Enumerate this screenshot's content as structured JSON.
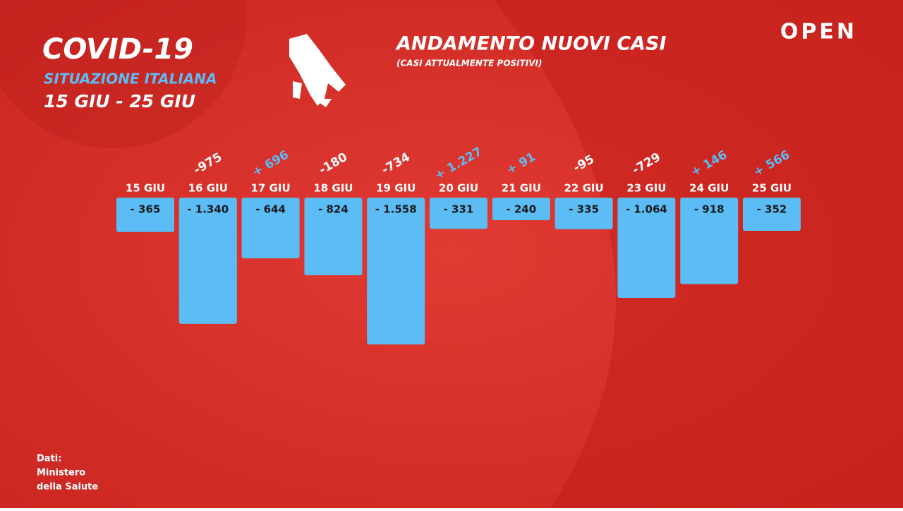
{
  "header": {
    "title": "COVID-19",
    "subtitle": "SITUAZIONE ITALIANA",
    "period": "15 GIU - 25 GIU"
  },
  "brand": "OPEN",
  "source": [
    "Dati:",
    "Ministero",
    "della Salute"
  ],
  "chart_data": {
    "type": "bar",
    "title": "ANDAMENTO NUOVI CASI",
    "subtitle": "(CASI ATTUALMENTE POSITIVI)",
    "categories": [
      "15 GIU",
      "16 GIU",
      "17 GIU",
      "18 GIU",
      "19 GIU",
      "20 GIU",
      "21 GIU",
      "22 GIU",
      "23 GIU",
      "24 GIU",
      "25 GIU"
    ],
    "values": [
      -365,
      -1340,
      -644,
      -824,
      -1558,
      -331,
      -240,
      -335,
      -1064,
      -918,
      -352
    ],
    "value_labels": [
      "- 365",
      "- 1.340",
      "- 644",
      "- 824",
      "- 1.558",
      "- 331",
      "- 240",
      "- 335",
      "- 1.064",
      "- 918",
      "- 352"
    ],
    "color": "#5cbcf6",
    "changes": {
      "values": [
        null,
        -975,
        696,
        -180,
        -734,
        1227,
        91,
        -95,
        -729,
        146,
        566
      ],
      "value_labels": [
        null,
        "-975",
        "+ 696",
        "-180",
        "-734",
        "+ 1.227",
        "+ 91",
        "-95",
        "-729",
        "+ 146",
        "+ 566"
      ],
      "up_color": "#5cbcf6",
      "down_color": "#ffffff"
    }
  }
}
